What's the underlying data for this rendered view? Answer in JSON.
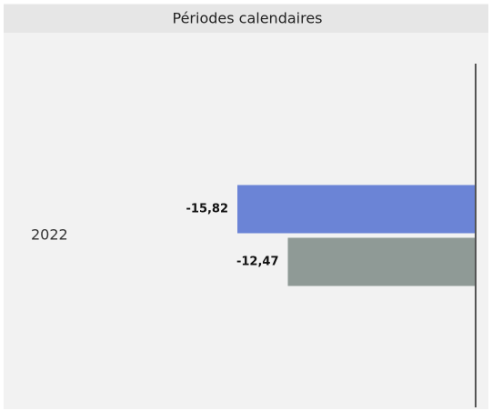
{
  "chart_data": {
    "type": "hbar",
    "title": "Périodes calendaires",
    "categories": [
      "2022"
    ],
    "series": [
      {
        "color": "#6b84d6",
        "values": [
          -15.82
        ],
        "value_labels": [
          "-15,82"
        ]
      },
      {
        "color": "#8f9a96",
        "values": [
          -12.47
        ],
        "value_labels": [
          "-12,47"
        ]
      }
    ],
    "xlim": [
      -25,
      0
    ]
  }
}
